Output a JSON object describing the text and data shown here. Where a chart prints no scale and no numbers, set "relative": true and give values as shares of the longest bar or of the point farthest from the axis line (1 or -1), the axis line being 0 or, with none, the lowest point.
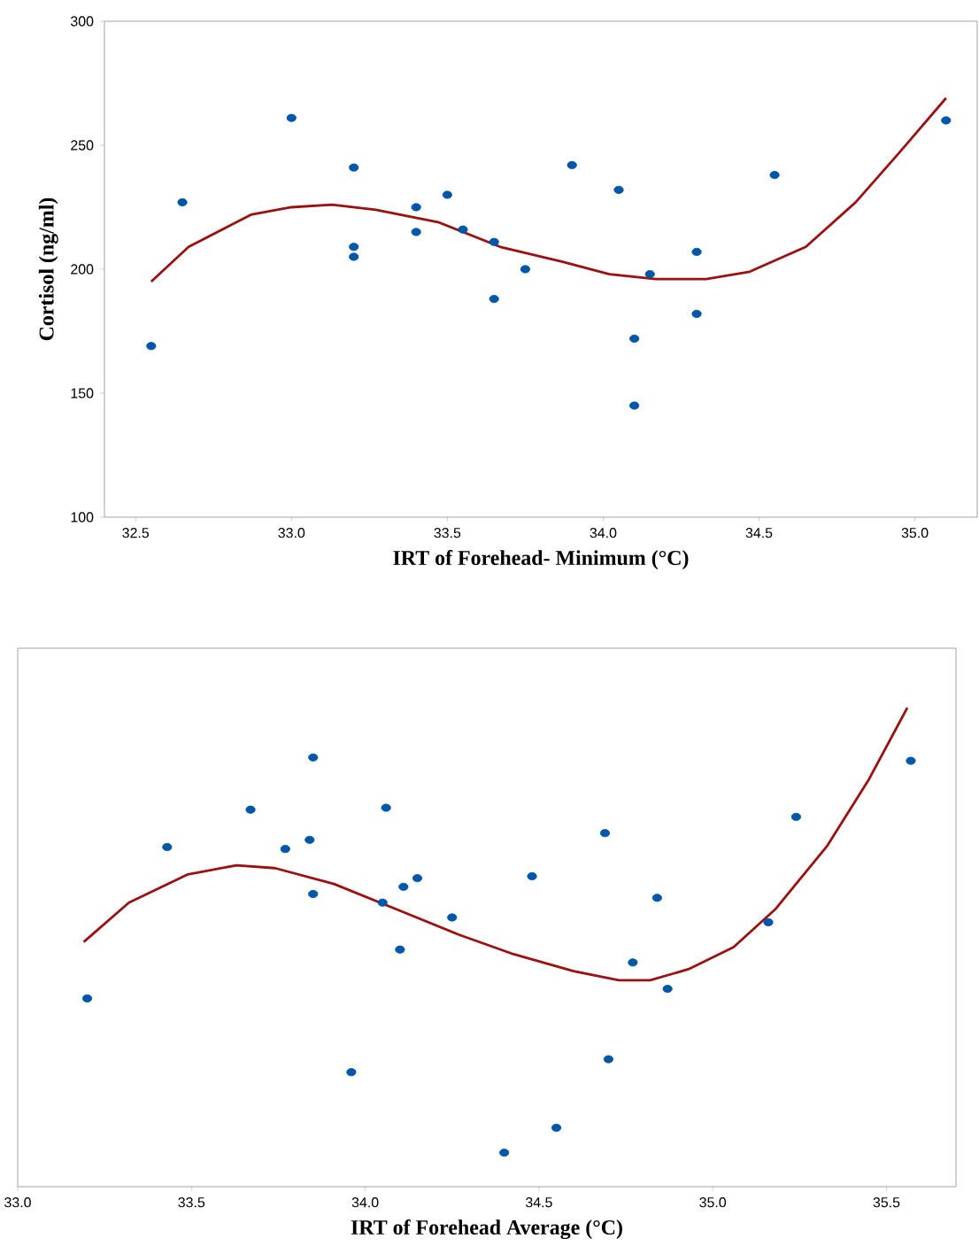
{
  "chart_data": [
    {
      "type": "scatter",
      "xlabel": "IRT of Forehead- Minimum (°C)",
      "ylabel": "Cortisol (ng/ml)",
      "xlim": [
        32.4,
        35.2
      ],
      "ylim": [
        100,
        300
      ],
      "xticks": [
        32.5,
        {
          "value": 33,
          "label": "33.0"
        },
        33.5,
        {
          "value": 34,
          "label": "34.0"
        },
        34.5,
        {
          "value": 35,
          "label": "35.0"
        }
      ],
      "yticks": [
        100,
        150,
        200,
        250,
        300
      ],
      "series": [
        {
          "type": "scatter",
          "marker": "circle",
          "color": "#0057a8",
          "x": [
            32.55,
            32.65,
            33.0,
            33.2,
            33.2,
            33.2,
            33.4,
            33.4,
            33.5,
            33.55,
            33.65,
            33.65,
            33.75,
            33.9,
            34.05,
            34.1,
            34.1,
            34.15,
            34.3,
            34.3,
            34.55,
            35.1
          ],
          "values": [
            169,
            227,
            261,
            241,
            209,
            205,
            225,
            215,
            230,
            216,
            211,
            188,
            200,
            242,
            232,
            172,
            145,
            198,
            207,
            182,
            238,
            260
          ]
        },
        {
          "type": "line",
          "marker": "none",
          "color": "#9b1010",
          "x": [
            32.55,
            32.67,
            32.87,
            33.0,
            33.13,
            33.27,
            33.47,
            33.67,
            33.87,
            34.02,
            34.17,
            34.33,
            34.47,
            34.65,
            34.81,
            34.95,
            35.1
          ],
          "values": [
            195,
            209,
            222,
            225,
            226,
            224,
            219,
            209,
            203,
            198,
            196,
            196,
            199,
            209,
            227,
            247,
            269
          ]
        }
      ]
    },
    {
      "type": "scatter",
      "xlabel": "IRT of Forehead Average (°C)",
      "relative": true,
      "tick_labels": "x",
      "xlim": [
        33.0,
        35.7
      ],
      "xticks": [
        {
          "value": 33,
          "label": "33.0"
        },
        33.5,
        {
          "value": 34,
          "label": "34.0"
        },
        34.5,
        {
          "value": 35,
          "label": "35.0"
        },
        35.5
      ],
      "series": [
        {
          "type": "scatter",
          "marker": "circle",
          "color": "#0057a8",
          "x": [
            33.2,
            33.43,
            33.67,
            33.77,
            33.84,
            33.85,
            33.85,
            33.96,
            34.05,
            34.06,
            34.1,
            34.11,
            34.15,
            34.25,
            34.4,
            34.48,
            34.55,
            34.69,
            34.7,
            34.77,
            34.84,
            34.87,
            35.16,
            35.24,
            35.57
          ],
          "values": [
            0.393,
            0.709,
            0.787,
            0.705,
            0.724,
            0.896,
            0.611,
            0.239,
            0.593,
            0.791,
            0.495,
            0.626,
            0.644,
            0.562,
            0.071,
            0.648,
            0.123,
            0.738,
            0.266,
            0.468,
            0.603,
            0.413,
            0.552,
            0.772,
            0.889
          ]
        },
        {
          "type": "line",
          "marker": "none",
          "color": "#9b1010",
          "x": [
            33.19,
            33.32,
            33.49,
            33.63,
            33.74,
            33.91,
            34.09,
            34.27,
            34.42,
            34.6,
            34.73,
            34.82,
            34.93,
            35.06,
            35.18,
            35.33,
            35.45,
            35.56
          ],
          "values": [
            0.511,
            0.593,
            0.652,
            0.671,
            0.665,
            0.632,
            0.579,
            0.526,
            0.487,
            0.45,
            0.431,
            0.431,
            0.454,
            0.5,
            0.579,
            0.712,
            0.851,
            1.0
          ]
        }
      ]
    }
  ]
}
